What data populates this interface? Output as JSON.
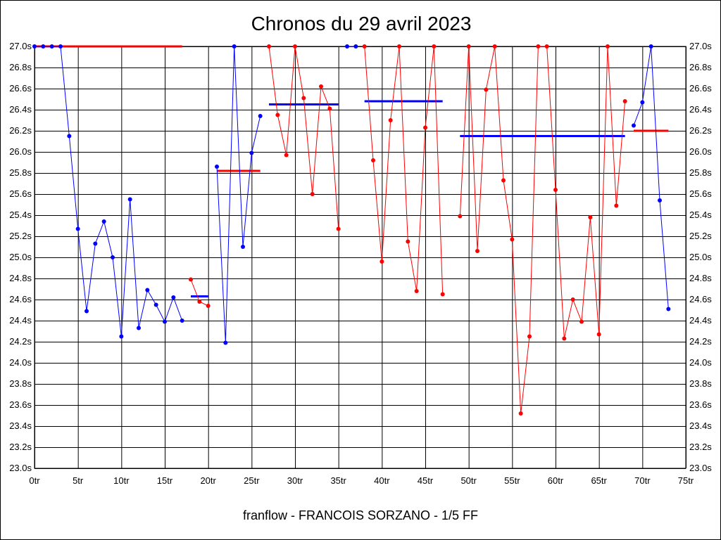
{
  "chart_data": {
    "type": "line",
    "title": "Chronos du 29 avril 2023",
    "caption": "franflow - FRANCOIS SORZANO - 1/5 FF",
    "xlim": [
      0,
      75
    ],
    "ylim": [
      23.0,
      27.0
    ],
    "x_ticks": [
      0,
      5,
      10,
      15,
      20,
      25,
      30,
      35,
      40,
      45,
      50,
      55,
      60,
      65,
      70,
      75
    ],
    "x_tick_labels": [
      "0tr",
      "5tr",
      "10tr",
      "15tr",
      "20tr",
      "25tr",
      "30tr",
      "35tr",
      "40tr",
      "45tr",
      "50tr",
      "55tr",
      "60tr",
      "65tr",
      "70tr",
      "75tr"
    ],
    "y_ticks": [
      23.0,
      23.2,
      23.4,
      23.6,
      23.8,
      24.0,
      24.2,
      24.4,
      24.6,
      24.8,
      25.0,
      25.2,
      25.4,
      25.6,
      25.8,
      26.0,
      26.2,
      26.4,
      26.6,
      26.8,
      27.0
    ],
    "y_tick_labels": [
      "23.0s",
      "23.2s",
      "23.4s",
      "23.6s",
      "23.8s",
      "24.0s",
      "24.2s",
      "24.4s",
      "24.6s",
      "24.8s",
      "25.0s",
      "25.2s",
      "25.4s",
      "25.6s",
      "25.8s",
      "26.0s",
      "26.2s",
      "26.4s",
      "26.6s",
      "26.8s",
      "27.0s"
    ],
    "grid": true,
    "colors": {
      "blue": "#0000ff",
      "red": "#ff0000",
      "grid": "#000000"
    },
    "segments": [
      {
        "color": "#0000ff",
        "points": [
          [
            0,
            27.0
          ],
          [
            1,
            27.0
          ],
          [
            2,
            27.0
          ],
          [
            3,
            27.0
          ],
          [
            4,
            26.15
          ],
          [
            5,
            25.27
          ],
          [
            6,
            24.49
          ],
          [
            7,
            25.13
          ],
          [
            8,
            25.34
          ],
          [
            9,
            25.0
          ],
          [
            10,
            24.25
          ],
          [
            11,
            25.55
          ],
          [
            12,
            24.33
          ],
          [
            13,
            24.69
          ],
          [
            14,
            24.55
          ],
          [
            15,
            24.39
          ],
          [
            16,
            24.62
          ],
          [
            17,
            24.4
          ]
        ]
      },
      {
        "color": "#ff0000",
        "points": [
          [
            18,
            24.79
          ],
          [
            19,
            24.58
          ],
          [
            20,
            24.54
          ]
        ]
      },
      {
        "color": "#0000ff",
        "points": [
          [
            21,
            25.86
          ],
          [
            22,
            24.19
          ],
          [
            23,
            27.0
          ],
          [
            24,
            25.1
          ],
          [
            25,
            25.99
          ],
          [
            26,
            26.34
          ]
        ]
      },
      {
        "color": "#ff0000",
        "points": [
          [
            27,
            27.0
          ],
          [
            28,
            26.35
          ],
          [
            29,
            25.97
          ],
          [
            30,
            27.0
          ],
          [
            31,
            26.51
          ],
          [
            32,
            25.6
          ],
          [
            33,
            26.62
          ],
          [
            34,
            26.41
          ],
          [
            35,
            25.27
          ]
        ]
      },
      {
        "color": "#0000ff",
        "points": [
          [
            36,
            27.0
          ],
          [
            37,
            27.0
          ]
        ]
      },
      {
        "color": "#ff0000",
        "points": [
          [
            38,
            27.0
          ],
          [
            39,
            25.92
          ],
          [
            40,
            24.96
          ],
          [
            41,
            26.3
          ],
          [
            42,
            27.0
          ],
          [
            43,
            25.15
          ],
          [
            44,
            24.68
          ],
          [
            45,
            26.23
          ],
          [
            46,
            27.0
          ],
          [
            47,
            24.65
          ]
        ]
      },
      {
        "color": "#ff0000",
        "points": [
          [
            49,
            25.39
          ],
          [
            50,
            27.0
          ],
          [
            51,
            25.06
          ],
          [
            52,
            26.59
          ],
          [
            53,
            27.0
          ],
          [
            54,
            25.73
          ],
          [
            55,
            25.17
          ],
          [
            56,
            23.52
          ],
          [
            57,
            24.25
          ],
          [
            58,
            27.0
          ],
          [
            59,
            27.0
          ],
          [
            60,
            25.64
          ],
          [
            61,
            24.23
          ],
          [
            62,
            24.6
          ],
          [
            63,
            24.39
          ],
          [
            64,
            25.38
          ],
          [
            65,
            24.27
          ],
          [
            66,
            27.0
          ],
          [
            67,
            25.49
          ],
          [
            68,
            26.48
          ]
        ]
      },
      {
        "color": "#0000ff",
        "points": [
          [
            69,
            26.25
          ],
          [
            70,
            26.47
          ],
          [
            71,
            27.0
          ],
          [
            72,
            25.54
          ],
          [
            73,
            24.51
          ]
        ]
      }
    ],
    "averages": [
      {
        "color": "#ff0000",
        "x": [
          0,
          17
        ],
        "y": 27.0
      },
      {
        "color": "#0000ff",
        "x": [
          18,
          20
        ],
        "y": 24.63
      },
      {
        "color": "#ff0000",
        "x": [
          21,
          26
        ],
        "y": 25.82
      },
      {
        "color": "#0000ff",
        "x": [
          27,
          35
        ],
        "y": 26.45
      },
      {
        "color": "#0000ff",
        "x": [
          38,
          47
        ],
        "y": 26.48
      },
      {
        "color": "#0000ff",
        "x": [
          49,
          68
        ],
        "y": 26.15
      },
      {
        "color": "#ff0000",
        "x": [
          69,
          73
        ],
        "y": 26.2
      }
    ]
  }
}
